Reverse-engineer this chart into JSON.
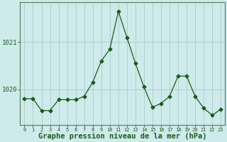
{
  "x": [
    0,
    1,
    2,
    3,
    4,
    5,
    6,
    7,
    8,
    9,
    10,
    11,
    12,
    13,
    14,
    15,
    16,
    17,
    18,
    19,
    20,
    21,
    22,
    23
  ],
  "y": [
    1019.8,
    1019.8,
    1019.55,
    1019.55,
    1019.78,
    1019.78,
    1019.78,
    1019.85,
    1020.15,
    1020.6,
    1020.85,
    1021.65,
    1021.1,
    1020.55,
    1020.05,
    1019.62,
    1019.7,
    1019.85,
    1020.28,
    1020.28,
    1019.85,
    1019.6,
    1019.45,
    1019.58
  ],
  "line_color": "#1a5c1a",
  "marker": "D",
  "marker_size": 2.5,
  "bg_color": "#ceeaea",
  "grid_color": "#aacece",
  "xlabel": "Graphe pression niveau de la mer (hPa)",
  "xlabel_fontsize": 7.5,
  "ytick_labels": [
    "1020",
    "1021"
  ],
  "ytick_values": [
    1020.0,
    1021.0
  ],
  "ylim": [
    1019.25,
    1021.85
  ],
  "xlim": [
    -0.5,
    23.5
  ],
  "tick_color": "#1a5c1a",
  "spine_color": "#5a7a5a",
  "figsize": [
    3.2,
    2.0
  ],
  "dpi": 100
}
